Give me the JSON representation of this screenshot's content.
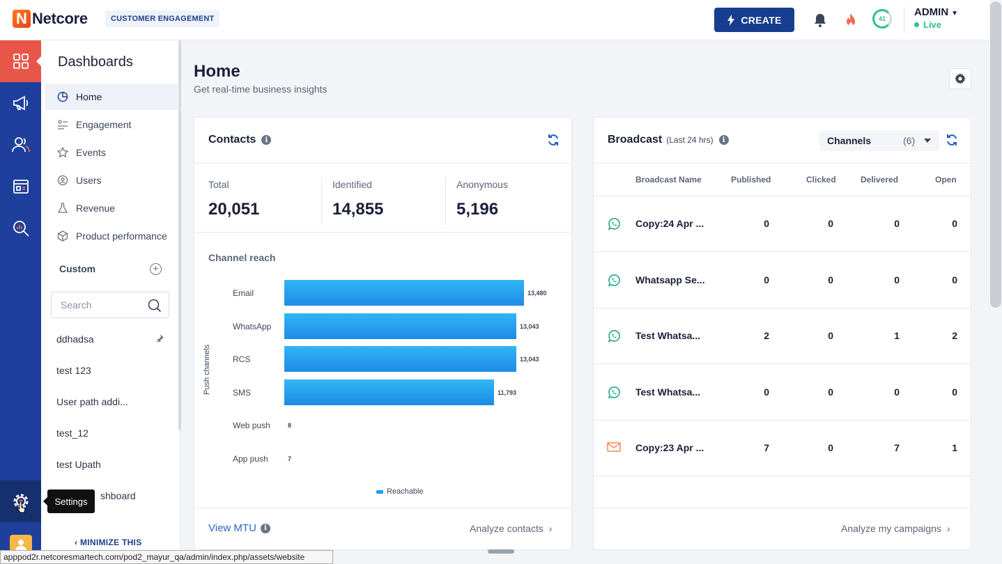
{
  "topbar": {
    "logo_letter": "N",
    "logo_text": "Netcore",
    "product_badge": "CUSTOMER ENGAGEMENT",
    "create_label": "CREATE",
    "score": "41",
    "user_name": "ADMIN",
    "env_status": "Live",
    "colors": {
      "primary": "#173d8f",
      "accent": "#e8564a",
      "live": "#2bc08d"
    }
  },
  "rail": {
    "items": [
      {
        "icon": "dashboard-icon",
        "active": true
      },
      {
        "icon": "megaphone-icon",
        "active": false
      },
      {
        "icon": "users-icon",
        "active": false
      },
      {
        "icon": "calendar-icon",
        "active": false
      },
      {
        "icon": "analytics-search-icon",
        "active": false
      }
    ],
    "settings_icon": "settings-icon",
    "tooltip": "Settings"
  },
  "subnav": {
    "title": "Dashboards",
    "items": [
      {
        "label": "Home",
        "icon": "pie-chart-icon",
        "active": true
      },
      {
        "label": "Engagement",
        "icon": "engagement-icon"
      },
      {
        "label": "Events",
        "icon": "star-icon"
      },
      {
        "label": "Users",
        "icon": "users-cycle-icon"
      },
      {
        "label": "Revenue",
        "icon": "flask-icon"
      },
      {
        "label": "Product performance",
        "icon": "box-icon"
      }
    ],
    "custom_heading": "Custom",
    "search_placeholder": "Search",
    "custom_items": [
      "ddhadsa",
      "test 123",
      "User path addi...",
      "test_12",
      "test Upath",
      "shboard"
    ],
    "minimize_label": "MINIMIZE THIS"
  },
  "page": {
    "title": "Home",
    "subtitle": "Get real-time business insights"
  },
  "contacts": {
    "title": "Contacts",
    "stats": [
      {
        "label": "Total",
        "value": "20,051"
      },
      {
        "label": "Identified",
        "value": "14,855"
      },
      {
        "label": "Anonymous",
        "value": "5,196"
      }
    ],
    "reach_title": "Channel reach",
    "view_mtu": "View MTU",
    "analyze_link": "Analyze contacts"
  },
  "chart_data": {
    "type": "bar",
    "orientation": "horizontal",
    "title": "Channel reach",
    "ylabel": "Push channels",
    "categories": [
      "Email",
      "WhatsApp",
      "RCS",
      "SMS",
      "Web push",
      "App push"
    ],
    "series": [
      {
        "name": "Reachable",
        "values": [
          13480,
          13043,
          13043,
          11793,
          8,
          7
        ]
      }
    ],
    "value_labels": [
      "13,480",
      "13,043",
      "13,043",
      "11,793",
      "8",
      "7"
    ],
    "xlim": [
      0,
      13480
    ],
    "legend_position": "bottom",
    "color": "#1d9bee"
  },
  "broadcast": {
    "title": "Broadcast",
    "period": "(Last 24 hrs)",
    "channels_label": "Channels",
    "channels_count": "(6)",
    "columns": [
      "Broadcast Name",
      "Published",
      "Clicked",
      "Delivered",
      "Open"
    ],
    "rows": [
      {
        "channel": "whatsapp-icon",
        "name": "Copy:24 Apr ...",
        "published": "0",
        "clicked": "0",
        "delivered": "0",
        "open": "0"
      },
      {
        "channel": "whatsapp-icon",
        "name": "Whatsapp Se...",
        "published": "0",
        "clicked": "0",
        "delivered": "0",
        "open": "0"
      },
      {
        "channel": "whatsapp-icon",
        "name": "Test Whatsa...",
        "published": "2",
        "clicked": "0",
        "delivered": "1",
        "open": "2"
      },
      {
        "channel": "whatsapp-icon",
        "name": "Test Whatsa...",
        "published": "0",
        "clicked": "0",
        "delivered": "0",
        "open": "0"
      },
      {
        "channel": "email-icon",
        "name": "Copy:23 Apr ...",
        "published": "7",
        "clicked": "0",
        "delivered": "7",
        "open": "1"
      }
    ],
    "analyze_link": "Analyze my campaigns"
  },
  "status_bar": {
    "url": "apppod2r.netcoresmartech.com/pod2_mayur_qa/admin/index.php/assets/website"
  }
}
